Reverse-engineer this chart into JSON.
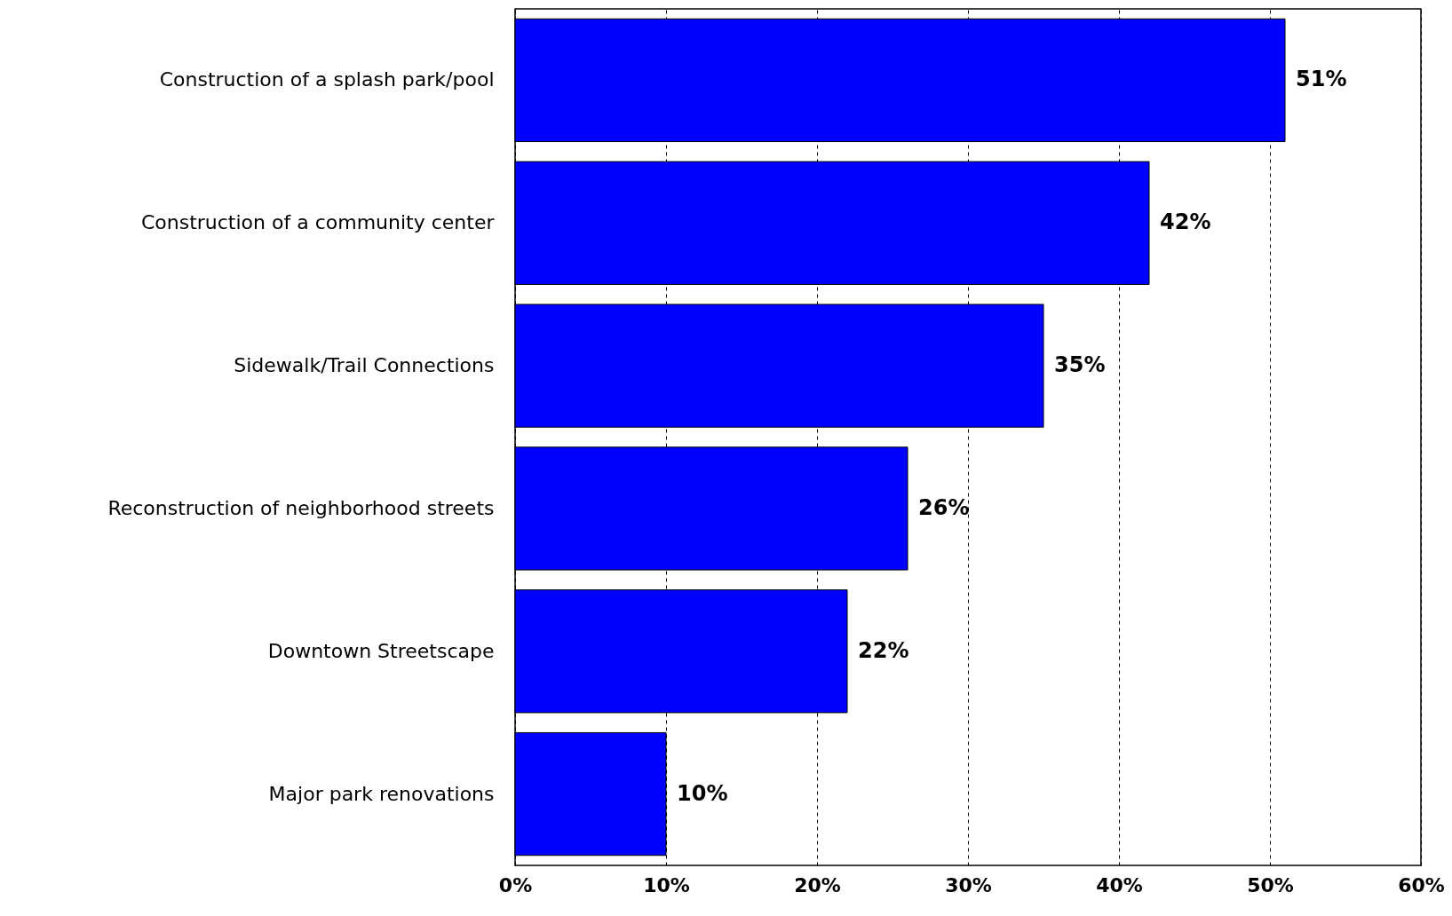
{
  "chart_data": {
    "type": "bar",
    "orientation": "horizontal",
    "categories": [
      "Construction of a splash park/pool",
      "Construction of a community center",
      "Sidewalk/Trail Connections",
      "Reconstruction of neighborhood streets",
      "Downtown Streetscape",
      "Major park renovations"
    ],
    "values": [
      51,
      42,
      35,
      26,
      22,
      10
    ],
    "value_labels": [
      "51%",
      "42%",
      "35%",
      "26%",
      "22%",
      "10%"
    ],
    "color": "#0000ff",
    "xlim": [
      0,
      60
    ],
    "xticks": [
      {
        "value": 0,
        "label": "0%"
      },
      {
        "value": 10,
        "label": "10%"
      },
      {
        "value": 20,
        "label": "20%"
      },
      {
        "value": 30,
        "label": "30%"
      },
      {
        "value": 40,
        "label": "40%"
      },
      {
        "value": 50,
        "label": "50%"
      },
      {
        "value": 60,
        "label": "60%"
      }
    ],
    "grid": "x"
  }
}
